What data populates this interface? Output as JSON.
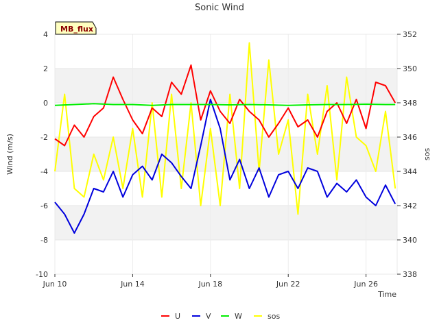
{
  "chart_data": {
    "type": "line",
    "title": "Sonic Wind",
    "badge": "MB_flux",
    "xlabel": "Time",
    "ylabel_left": "Wind (m/s)",
    "ylabel_right": "sos",
    "x_range_days": [
      10,
      27.6
    ],
    "ylim_left": [
      -10,
      4
    ],
    "ylim_right": [
      338,
      352
    ],
    "yticks_left": [
      "-10",
      "-8",
      "-6",
      "-4",
      "-2",
      "0",
      "2",
      "4"
    ],
    "yticks_right": [
      "338",
      "340",
      "342",
      "344",
      "346",
      "348",
      "350",
      "352"
    ],
    "xticks": [
      {
        "day": 10,
        "label": "Jun 10"
      },
      {
        "day": 14,
        "label": "Jun 14"
      },
      {
        "day": 18,
        "label": "Jun 18"
      },
      {
        "day": 22,
        "label": "Jun 22"
      },
      {
        "day": 26,
        "label": "Jun 26"
      }
    ],
    "bands_left": [
      [
        -8,
        -6
      ],
      [
        -4,
        -2
      ],
      [
        0,
        2
      ]
    ],
    "series": [
      {
        "name": "U",
        "axis": "left",
        "color": "#ff0000",
        "x": [
          10.0,
          10.5,
          11.0,
          11.5,
          12.0,
          12.5,
          13.0,
          13.5,
          14.0,
          14.5,
          15.0,
          15.5,
          16.0,
          16.5,
          17.0,
          17.5,
          18.0,
          18.5,
          19.0,
          19.5,
          20.0,
          20.5,
          21.0,
          21.5,
          22.0,
          22.5,
          23.0,
          23.5,
          24.0,
          24.5,
          25.0,
          25.5,
          26.0,
          26.5,
          27.0,
          27.5
        ],
        "values": [
          -2.1,
          -2.5,
          -1.3,
          -2.0,
          -0.8,
          -0.3,
          1.5,
          0.2,
          -1.0,
          -1.8,
          -0.3,
          -0.8,
          1.2,
          0.5,
          2.2,
          -1.0,
          0.7,
          -0.5,
          -1.2,
          0.2,
          -0.5,
          -1.0,
          -2.0,
          -1.2,
          -0.3,
          -1.4,
          -1.0,
          -2.0,
          -0.5,
          0.0,
          -1.2,
          0.2,
          -1.5,
          1.2,
          1.0,
          0.0
        ]
      },
      {
        "name": "V",
        "axis": "left",
        "color": "#0000dd",
        "x": [
          10.0,
          10.5,
          11.0,
          11.5,
          12.0,
          12.5,
          13.0,
          13.5,
          14.0,
          14.5,
          15.0,
          15.5,
          16.0,
          16.5,
          17.0,
          17.5,
          18.0,
          18.5,
          19.0,
          19.5,
          20.0,
          20.5,
          21.0,
          21.5,
          22.0,
          22.5,
          23.0,
          23.5,
          24.0,
          24.5,
          25.0,
          25.5,
          26.0,
          26.5,
          27.0,
          27.5
        ],
        "values": [
          -5.8,
          -6.5,
          -7.6,
          -6.5,
          -5.0,
          -5.2,
          -4.0,
          -5.5,
          -4.2,
          -3.7,
          -4.5,
          -3.0,
          -3.5,
          -4.3,
          -5.0,
          -2.5,
          0.2,
          -1.5,
          -4.5,
          -3.3,
          -5.0,
          -3.8,
          -5.5,
          -4.2,
          -4.0,
          -5.0,
          -3.8,
          -4.0,
          -5.5,
          -4.7,
          -5.2,
          -4.5,
          -5.5,
          -6.0,
          -4.8,
          -5.9
        ]
      },
      {
        "name": "W",
        "axis": "left",
        "color": "#00ee00",
        "x": [
          10.0,
          11.0,
          12.0,
          13.0,
          14.0,
          15.0,
          16.0,
          17.0,
          18.0,
          19.0,
          20.0,
          21.0,
          22.0,
          23.0,
          24.0,
          25.0,
          26.0,
          27.0,
          27.5
        ],
        "values": [
          -0.15,
          -0.1,
          -0.05,
          -0.1,
          -0.1,
          -0.15,
          -0.1,
          -0.1,
          -0.1,
          -0.12,
          -0.1,
          -0.12,
          -0.15,
          -0.12,
          -0.1,
          -0.1,
          -0.08,
          -0.1,
          -0.1
        ]
      },
      {
        "name": "sos",
        "axis": "right",
        "color": "#ffff00",
        "x": [
          10.0,
          10.5,
          11.0,
          11.5,
          12.0,
          12.5,
          13.0,
          13.5,
          14.0,
          14.5,
          15.0,
          15.5,
          16.0,
          16.5,
          17.0,
          17.5,
          18.0,
          18.5,
          19.0,
          19.5,
          20.0,
          20.5,
          21.0,
          21.5,
          22.0,
          22.5,
          23.0,
          23.5,
          24.0,
          24.5,
          25.0,
          25.5,
          26.0,
          26.5,
          27.0,
          27.5
        ],
        "values": [
          344.0,
          348.5,
          343.0,
          342.5,
          345.0,
          343.5,
          346.0,
          343.0,
          346.5,
          342.5,
          348.0,
          342.5,
          348.5,
          343.0,
          348.0,
          342.0,
          346.5,
          342.0,
          348.5,
          343.0,
          351.5,
          344.0,
          350.5,
          345.0,
          347.0,
          341.5,
          348.5,
          345.0,
          349.0,
          343.5,
          349.5,
          346.0,
          345.5,
          344.0,
          347.5,
          343.0
        ]
      }
    ]
  }
}
